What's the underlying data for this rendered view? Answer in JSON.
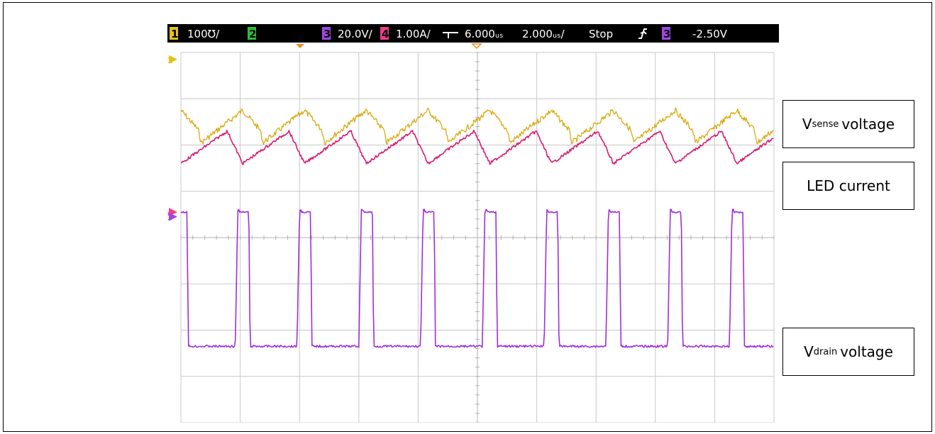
{
  "status_bar": {
    "ch1": {
      "num": "1",
      "scale": "100℧/",
      "color": "#e5c319"
    },
    "ch2": {
      "num": "2",
      "scale": "",
      "color": "#2dbe35"
    },
    "ch3": {
      "num": "3",
      "scale": "20.0V/",
      "color": "#a545e6"
    },
    "ch4": {
      "num": "4",
      "scale": "1.00A/",
      "color": "#ec3e8e"
    },
    "delay": "6.000ᵤₛ",
    "timebase": "2.000ᵤₛ/",
    "run_state": "Stop",
    "trigger_source": "3",
    "trigger_level": "-2.50V"
  },
  "labels": {
    "vsense_main": "V",
    "vsense_sub": "sense",
    "vsense_rest": "voltage",
    "led": "LED current",
    "vdrain_main": "V",
    "vdrain_sub": "drain",
    "vdrain_rest": "voltage"
  },
  "chart_data": {
    "type": "line",
    "grid": true,
    "x_divisions": 10,
    "y_divisions": 8,
    "series": [
      {
        "color": "#d9a90f",
        "waveform": "sawtooth",
        "high_div": 1.95,
        "low_div": 1.25,
        "periods": 9.6
      },
      {
        "color": "#d81b71",
        "waveform": "triangle",
        "high_div": 1.7,
        "low_div": 2.4,
        "periods": 9.6
      },
      {
        "color": "#9e2fdc",
        "waveform": "pulse",
        "high_div": 3.45,
        "low_div": 6.35,
        "periods": 9.6
      }
    ],
    "markers": [
      {
        "label": "1",
        "color": "#e5c319",
        "y_div": 0.15
      },
      {
        "label": "4",
        "color": "#ec3e8e",
        "y_div": 3.45
      },
      {
        "label": "3",
        "color": "#a545e6",
        "y_div": 3.55
      }
    ]
  }
}
